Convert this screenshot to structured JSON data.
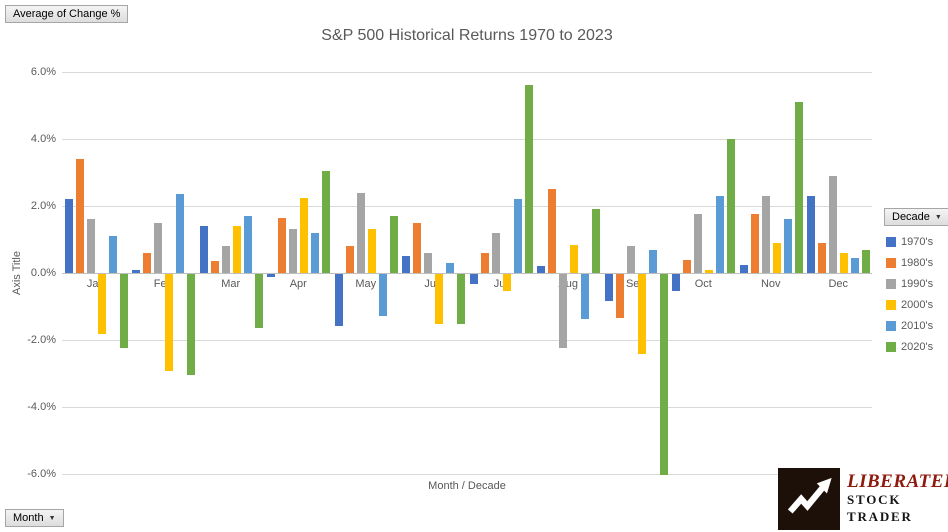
{
  "field_buttons": {
    "value_button": "Average of Change %",
    "axis_button": "Month",
    "legend_button": "Decade"
  },
  "icons": {
    "dropdown_arrow": "▼"
  },
  "chart_data": {
    "type": "bar",
    "title": "S&P 500 Historical Returns 1970 to 2023",
    "xlabel": "Month / Decade",
    "ylabel": "Axis Title",
    "ylim": [
      -6,
      6
    ],
    "ytick_step": 2,
    "yticks": [
      6,
      4,
      2,
      0,
      -2,
      -4,
      -6
    ],
    "ytick_labels": [
      "6.0%",
      "4.0%",
      "2.0%",
      "0.0%",
      "-2.0%",
      "-4.0%",
      "-6.0%"
    ],
    "grid": true,
    "legend_position": "right",
    "categories": [
      "Jan",
      "Feb",
      "Mar",
      "Apr",
      "May",
      "Jun",
      "Jul",
      "Aug",
      "Sep",
      "Oct",
      "Nov",
      "Dec"
    ],
    "series": [
      {
        "name": "1970's",
        "color": "#4472C4",
        "values": [
          2.2,
          0.1,
          1.4,
          -0.1,
          -1.55,
          0.5,
          -0.3,
          0.2,
          -0.8,
          -0.5,
          0.25,
          2.3
        ]
      },
      {
        "name": "1980's",
        "color": "#ED7D31",
        "values": [
          3.4,
          0.6,
          0.35,
          1.65,
          0.8,
          1.5,
          0.6,
          2.5,
          -1.3,
          0.4,
          1.75,
          0.9
        ]
      },
      {
        "name": "1990's",
        "color": "#A5A5A5",
        "values": [
          1.6,
          1.5,
          0.8,
          1.3,
          2.4,
          0.6,
          1.2,
          -2.2,
          0.8,
          1.75,
          2.3,
          2.9
        ]
      },
      {
        "name": "2000's",
        "color": "#FFC000",
        "values": [
          -1.8,
          -2.9,
          1.4,
          2.25,
          1.3,
          -1.5,
          -0.5,
          0.85,
          -2.4,
          0.1,
          0.9,
          0.6
        ]
      },
      {
        "name": "2010's",
        "color": "#5B9BD5",
        "values": [
          1.1,
          2.35,
          1.7,
          1.2,
          -1.25,
          0.3,
          2.2,
          -1.35,
          0.7,
          2.3,
          1.6,
          0.45
        ]
      },
      {
        "name": "2020's",
        "color": "#70AD47",
        "values": [
          -2.2,
          -3.0,
          -1.6,
          3.05,
          1.7,
          -1.5,
          5.6,
          1.9,
          -6.0,
          4.0,
          5.1,
          0.7
        ]
      }
    ]
  },
  "colors": {
    "gridline": "#D9D9D9",
    "zero_axis": "#BFBFBF",
    "chart_text": "#595959",
    "logo_red": "#8E1A0D",
    "logo_square": "#1D1009"
  },
  "logo": {
    "line1": "LIBERATED",
    "line2": "STOCK TRADER"
  }
}
